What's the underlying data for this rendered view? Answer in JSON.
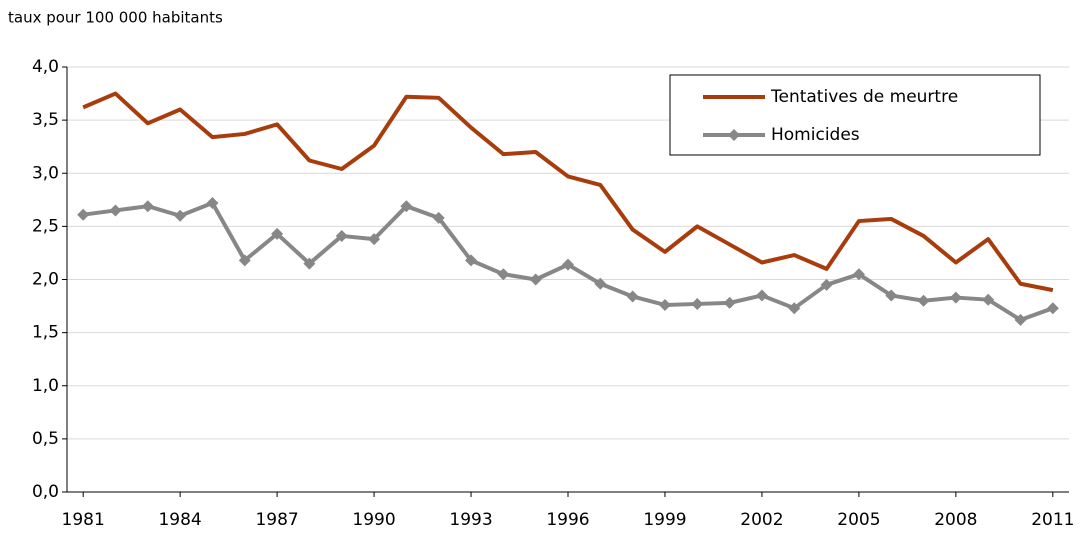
{
  "chart_data": {
    "type": "line",
    "y_label": "taux pour 100 000 habitants",
    "x": [
      1981,
      1982,
      1983,
      1984,
      1985,
      1986,
      1987,
      1988,
      1989,
      1990,
      1991,
      1992,
      1993,
      1994,
      1995,
      1996,
      1997,
      1998,
      1999,
      2000,
      2001,
      2002,
      2003,
      2004,
      2005,
      2006,
      2007,
      2008,
      2009,
      2010,
      2011
    ],
    "xlim": [
      1980.5,
      2011.5
    ],
    "xticks": [
      1981,
      1984,
      1987,
      1990,
      1993,
      1996,
      1999,
      2002,
      2005,
      2008,
      2011
    ],
    "ylim": [
      0,
      4
    ],
    "yticks": [
      {
        "value": 0,
        "label": "0,0"
      },
      {
        "value": 0.5,
        "label": "0,5"
      },
      {
        "value": 1,
        "label": "1,0"
      },
      {
        "value": 1.5,
        "label": "1,5"
      },
      {
        "value": 2,
        "label": "2,0"
      },
      {
        "value": 2.5,
        "label": "2,5"
      },
      {
        "value": 3,
        "label": "3,0"
      },
      {
        "value": 3.5,
        "label": "3,5"
      },
      {
        "value": 4,
        "label": "4,0"
      }
    ],
    "grid": true,
    "legend": "upper right",
    "series": [
      {
        "name": "Tentatives de meurtre",
        "color": "#a83c0c",
        "marker": false,
        "values": [
          3.62,
          3.75,
          3.47,
          3.6,
          3.34,
          3.37,
          3.46,
          3.12,
          3.04,
          3.26,
          3.72,
          3.71,
          3.43,
          3.18,
          3.2,
          2.97,
          2.89,
          2.47,
          2.26,
          2.5,
          2.33,
          2.16,
          2.23,
          2.1,
          2.55,
          2.57,
          2.41,
          2.16,
          2.38,
          1.96,
          1.9
        ]
      },
      {
        "name": "Homicides",
        "color": "#878787",
        "marker": true,
        "values": [
          2.61,
          2.65,
          2.69,
          2.6,
          2.72,
          2.18,
          2.43,
          2.15,
          2.41,
          2.38,
          2.69,
          2.58,
          2.18,
          2.05,
          2.0,
          2.14,
          1.96,
          1.84,
          1.76,
          1.77,
          1.78,
          1.85,
          1.73,
          1.95,
          2.05,
          1.85,
          1.8,
          1.83,
          1.81,
          1.62,
          1.73
        ]
      }
    ]
  }
}
